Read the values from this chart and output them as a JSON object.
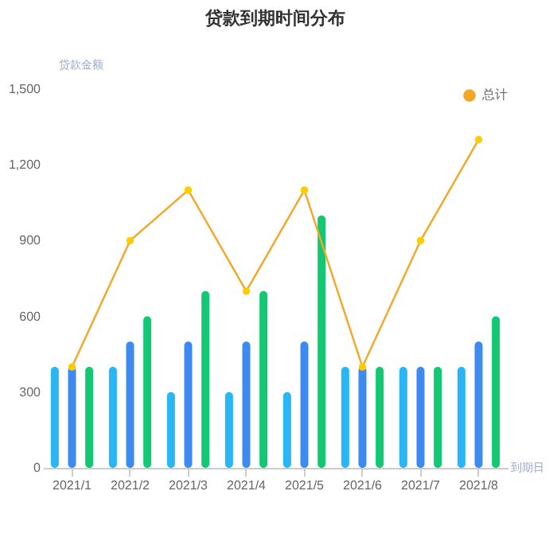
{
  "chart_data": {
    "type": "bar",
    "title": "贷款到期时间分布",
    "ylabel": "贷款金额",
    "xlabel": "到期日",
    "categories": [
      "2021/1",
      "2021/2",
      "2021/3",
      "2021/4",
      "2021/5",
      "2021/6",
      "2021/7",
      "2021/8"
    ],
    "series": [
      {
        "color": "#29b6f6",
        "values": [
          400,
          400,
          300,
          300,
          300,
          400,
          400,
          400
        ]
      },
      {
        "color": "#3d8bf0",
        "values": [
          400,
          500,
          500,
          500,
          500,
          400,
          400,
          500
        ]
      },
      {
        "color": "#12c873",
        "values": [
          400,
          600,
          700,
          700,
          1000,
          400,
          400,
          600
        ]
      },
      {
        "name": "总计",
        "type": "line",
        "color": "#f5a623",
        "values": [
          400,
          900,
          1100,
          700,
          1100,
          400,
          900,
          1300
        ]
      }
    ],
    "ylim": [
      0,
      1500
    ],
    "yticks": [
      0,
      300,
      600,
      900,
      {
        "value": 1200,
        "label": "1,200"
      },
      {
        "value": 1500,
        "label": "1,500"
      }
    ],
    "grid": false,
    "legend": "top right",
    "marker": "circle"
  }
}
